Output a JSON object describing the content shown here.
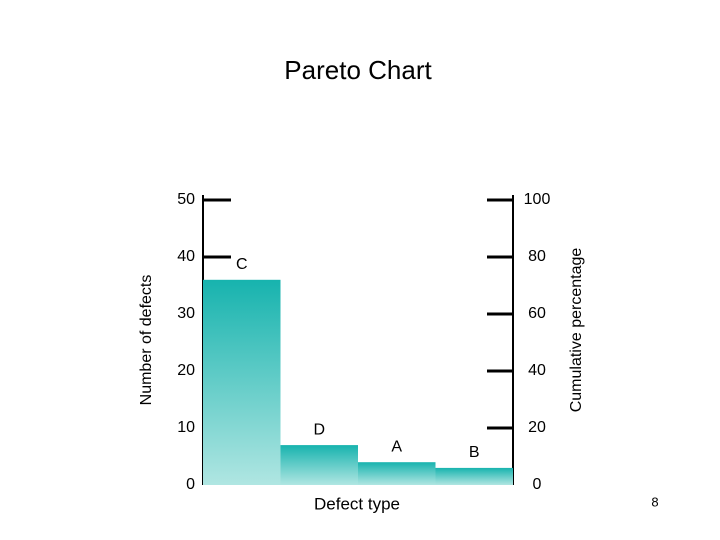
{
  "chart_data": {
    "type": "bar",
    "title": "Pareto Chart",
    "categories": [
      "C",
      "D",
      "A",
      "B"
    ],
    "values": [
      36,
      7,
      4,
      3
    ],
    "color": "#17b3ae",
    "x_label": "Defect type",
    "y_label": "Number of defects",
    "y2_label": "Cumulative percentage",
    "ylim": [
      0,
      50
    ],
    "yticks": [
      0,
      10,
      20,
      30,
      40,
      50
    ],
    "y2lim": [
      0,
      100
    ],
    "y2ticks": [
      0,
      20,
      40,
      60,
      80,
      100
    ]
  },
  "page_number": "8"
}
